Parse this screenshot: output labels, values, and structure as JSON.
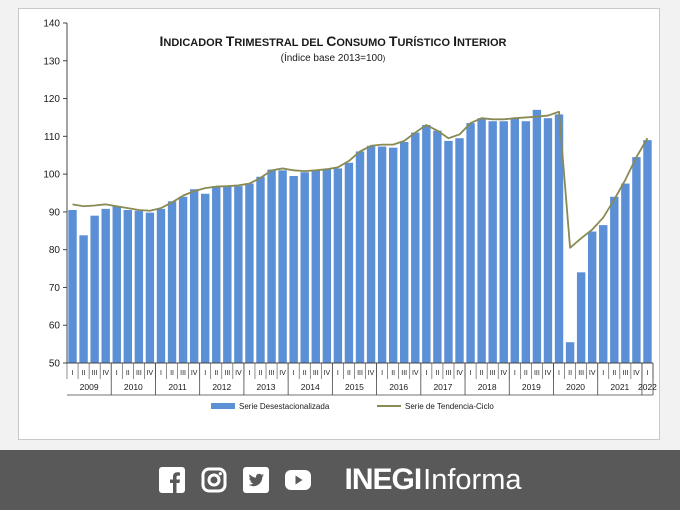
{
  "chart_data": {
    "type": "bar",
    "title_parts": [
      "I",
      "NDICADOR ",
      "T",
      "RIMESTRAL DEL ",
      "C",
      "ONSUMO ",
      "T",
      "URÍSTICO ",
      "I",
      "NTERIOR"
    ],
    "subtitle_main": "(Índice base 2013=100",
    "subtitle_end": ")",
    "ylim": [
      50,
      140
    ],
    "y_ticks": [
      "50",
      "60",
      "70",
      "80",
      "90",
      "100",
      "110",
      "120",
      "130",
      "140"
    ],
    "quarter_labels": [
      "I",
      "II",
      "III",
      "IV",
      "I",
      "II",
      "III",
      "IV",
      "I",
      "II",
      "III",
      "IV",
      "I",
      "II",
      "III",
      "IV",
      "I",
      "II",
      "III",
      "IV",
      "I",
      "II",
      "III",
      "IV",
      "I",
      "II",
      "III",
      "IV",
      "I",
      "II",
      "III",
      "IV",
      "I",
      "II",
      "III",
      "IV",
      "I",
      "II",
      "III",
      "IV",
      "I",
      "II",
      "III",
      "IV",
      "I",
      "II",
      "III",
      "IV",
      "I",
      "II",
      "III",
      "IV",
      "I"
    ],
    "years": [
      {
        "label": "2009",
        "start": 0,
        "count": 4
      },
      {
        "label": "2010",
        "start": 4,
        "count": 4
      },
      {
        "label": "2011",
        "start": 8,
        "count": 4
      },
      {
        "label": "2012",
        "start": 12,
        "count": 4
      },
      {
        "label": "2013",
        "start": 16,
        "count": 4
      },
      {
        "label": "2014",
        "start": 20,
        "count": 4
      },
      {
        "label": "2015",
        "start": 24,
        "count": 4
      },
      {
        "label": "2016",
        "start": 28,
        "count": 4
      },
      {
        "label": "2017",
        "start": 32,
        "count": 4
      },
      {
        "label": "2018",
        "start": 36,
        "count": 4
      },
      {
        "label": "2019",
        "start": 40,
        "count": 4
      },
      {
        "label": "2020",
        "start": 44,
        "count": 4
      },
      {
        "label": "2021",
        "start": 48,
        "count": 4
      },
      {
        "label": "2022",
        "start": 52,
        "count": 1
      }
    ],
    "series": [
      {
        "name": "Serie Desestacionalizada",
        "kind": "bar",
        "color": "#5b8fd6",
        "values": [
          90.5,
          83.8,
          89.0,
          90.8,
          91.5,
          90.5,
          90.3,
          89.8,
          90.8,
          92.8,
          94.0,
          96.0,
          94.8,
          96.8,
          97.0,
          96.8,
          97.5,
          99.3,
          101.2,
          101.0,
          99.5,
          100.5,
          101.0,
          101.3,
          101.5,
          103.0,
          106.0,
          107.5,
          107.3,
          107.0,
          108.5,
          111.0,
          113.0,
          111.5,
          108.8,
          109.5,
          113.5,
          114.8,
          114.0,
          114.0,
          114.8,
          114.0,
          117.0,
          114.8,
          115.8,
          55.5,
          74.0,
          84.8,
          86.5,
          94.0,
          97.5,
          104.5,
          109.0
        ]
      },
      {
        "name": "Serie de Tendencia-Ciclo",
        "kind": "line",
        "color": "#8a8a55",
        "values": [
          92.0,
          91.5,
          91.7,
          92.0,
          91.5,
          91.0,
          90.5,
          90.3,
          91.0,
          92.5,
          94.3,
          95.5,
          96.3,
          96.7,
          96.8,
          97.0,
          97.5,
          99.0,
          101.0,
          101.5,
          101.0,
          100.8,
          101.0,
          101.3,
          101.8,
          103.5,
          106.0,
          107.5,
          107.8,
          107.8,
          108.8,
          111.0,
          113.0,
          111.5,
          109.5,
          110.5,
          113.5,
          114.8,
          114.5,
          114.5,
          114.8,
          115.0,
          115.2,
          115.5,
          116.5,
          80.5,
          83.0,
          85.3,
          88.5,
          93.3,
          98.5,
          104.5,
          109.5
        ]
      }
    ]
  },
  "footer": {
    "brand_strong": "INEGI",
    "brand_light": "Informa",
    "icons": [
      "facebook-icon",
      "instagram-icon",
      "twitter-icon",
      "youtube-icon"
    ]
  }
}
